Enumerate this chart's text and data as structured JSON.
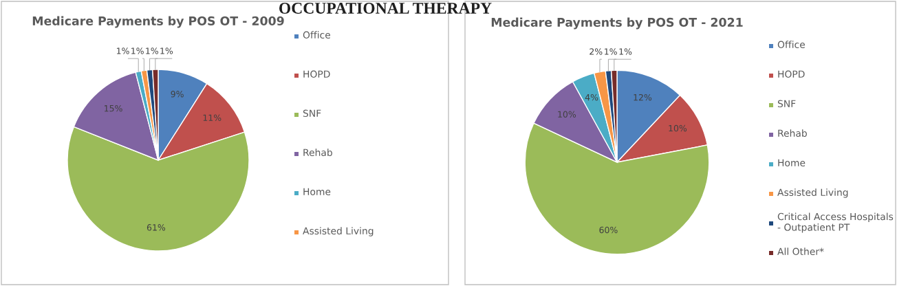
{
  "chart_data": [
    {
      "type": "other",
      "title": "OCCUPATIONAL THERAPY"
    },
    {
      "type": "pie",
      "title": "Medicare Payments by POS OT - 2009",
      "categories": [
        "Office",
        "HOPD",
        "SNF",
        "Rehab",
        "Home",
        "Assisted Living",
        null,
        null
      ],
      "values": [
        9,
        11,
        61,
        15,
        1,
        1,
        1,
        1
      ],
      "value_labels": [
        "9%",
        "11%",
        "61%",
        "15%",
        "1%",
        "1%",
        "1%",
        "1%"
      ],
      "colors": [
        "#4f81bd",
        "#c0504d",
        "#9bbb59",
        "#8064a2",
        "#4bacc6",
        "#f79646",
        "#1f497d",
        "#772c2a"
      ],
      "legend": "right"
    },
    {
      "type": "pie",
      "title": "Medicare Payments by POS OT - 2021",
      "categories": [
        "Office",
        "HOPD",
        "SNF",
        "Rehab",
        "Home",
        "Assisted Living",
        "Critical Access Hospitals - Outpatient PT",
        "All Other*"
      ],
      "values": [
        12,
        10,
        60,
        10,
        4,
        2,
        1,
        1
      ],
      "value_labels": [
        "12%",
        "10%",
        "60%",
        "10%",
        "4%",
        "2%",
        "1%",
        "1%"
      ],
      "colors": [
        "#4f81bd",
        "#c0504d",
        "#9bbb59",
        "#8064a2",
        "#4bacc6",
        "#f79646",
        "#1f497d",
        "#772c2a"
      ],
      "legend": "right"
    }
  ]
}
